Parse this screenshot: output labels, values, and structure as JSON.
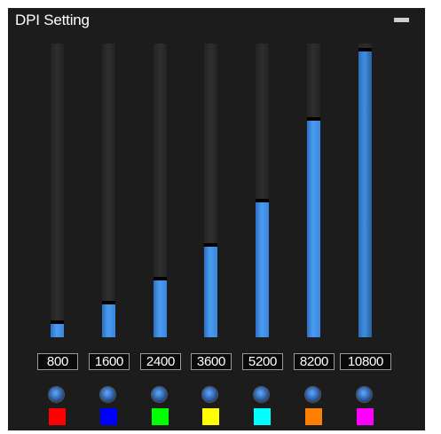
{
  "window": {
    "title": "DPI Setting"
  },
  "levels": [
    {
      "label": "800",
      "fraction": 0.058,
      "color": "#ff0000"
    },
    {
      "label": "1600",
      "fraction": 0.125,
      "color": "#0000ff"
    },
    {
      "label": "2400",
      "fraction": 0.204,
      "color": "#00ff00"
    },
    {
      "label": "3600",
      "fraction": 0.32,
      "color": "#ffff00"
    },
    {
      "label": "5200",
      "fraction": 0.47,
      "color": "#00ffff"
    },
    {
      "label": "8200",
      "fraction": 0.75,
      "color": "#ff7f00"
    },
    {
      "label": "10800",
      "fraction": 0.985,
      "color": "#ff00ff"
    }
  ]
}
